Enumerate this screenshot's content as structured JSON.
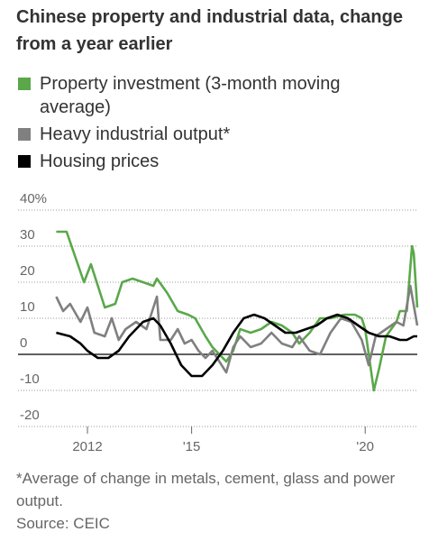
{
  "chart_data": {
    "type": "line",
    "title": "Chinese property and industrial data, change from a year earlier",
    "footnote": "*Average of change in metals, cement, glass and power output.",
    "source": "Source: CEIC",
    "xlim": [
      2010,
      2021.5
    ],
    "xticks": [
      2012,
      {
        "value": 2015,
        "label": "'15"
      },
      {
        "value": 2020,
        "label": "'20"
      }
    ],
    "ylim": [
      -20,
      40
    ],
    "yticks": [
      {
        "value": 40,
        "label": "40%"
      },
      30,
      20,
      10,
      0,
      -10,
      -20
    ],
    "grid": true,
    "series": [
      {
        "name": "Property investment (3-month moving average)",
        "color": "#5aa84a",
        "x": [
          2011.1,
          2011.4,
          2011.9,
          2012.1,
          2012.5,
          2012.8,
          2013.0,
          2013.3,
          2013.6,
          2013.9,
          2014.0,
          2014.3,
          2014.6,
          2014.9,
          2015.1,
          2015.4,
          2015.6,
          2015.8,
          2016.0,
          2016.2,
          2016.4,
          2016.7,
          2017.0,
          2017.3,
          2017.6,
          2017.9,
          2018.1,
          2018.4,
          2018.7,
          2019.0,
          2019.4,
          2019.7,
          2019.9,
          2020.0,
          2020.25,
          2020.4,
          2020.6,
          2020.9,
          2021.0,
          2021.2,
          2021.35,
          2021.4,
          2021.5
        ],
        "values": [
          34,
          34,
          20,
          25,
          13,
          14,
          20,
          21,
          20,
          19,
          21,
          17,
          12,
          11,
          10,
          5,
          2,
          0,
          -2,
          1,
          7,
          6,
          7,
          9,
          8,
          6,
          3,
          6,
          10,
          10,
          11,
          11,
          10,
          7,
          -10,
          -4,
          5,
          9,
          12,
          12,
          30,
          28,
          13
        ]
      },
      {
        "name": "Heavy industrial output*",
        "color": "#808080",
        "x": [
          2011.1,
          2011.3,
          2011.5,
          2011.8,
          2012.0,
          2012.2,
          2012.5,
          2012.7,
          2012.9,
          2013.1,
          2013.4,
          2013.7,
          2014.0,
          2014.1,
          2014.4,
          2014.6,
          2014.8,
          2015.0,
          2015.2,
          2015.4,
          2015.6,
          2015.8,
          2016.0,
          2016.2,
          2016.4,
          2016.7,
          2017.0,
          2017.3,
          2017.6,
          2017.9,
          2018.1,
          2018.4,
          2018.7,
          2019.0,
          2019.3,
          2019.6,
          2019.9,
          2020.1,
          2020.3,
          2020.6,
          2020.9,
          2021.1,
          2021.3,
          2021.5
        ],
        "values": [
          16,
          12,
          14,
          9,
          13,
          6,
          5,
          10,
          4,
          7,
          9,
          7,
          16,
          4,
          4,
          7,
          3,
          4,
          1,
          -1,
          1,
          -2,
          -5,
          2,
          5,
          2,
          3,
          6,
          3,
          2,
          5,
          1,
          0,
          6,
          10,
          9,
          4,
          -3,
          5,
          7,
          9,
          8,
          19,
          8
        ]
      },
      {
        "name": "Housing prices",
        "color": "#000000",
        "x": [
          2011.1,
          2011.5,
          2011.8,
          2012.0,
          2012.3,
          2012.6,
          2012.9,
          2013.2,
          2013.6,
          2013.9,
          2014.1,
          2014.4,
          2014.7,
          2015.0,
          2015.3,
          2015.6,
          2015.9,
          2016.2,
          2016.5,
          2016.8,
          2017.1,
          2017.4,
          2017.7,
          2018.0,
          2018.3,
          2018.6,
          2018.9,
          2019.2,
          2019.5,
          2019.8,
          2020.1,
          2020.4,
          2020.7,
          2021.0,
          2021.2,
          2021.4,
          2021.5
        ],
        "values": [
          6,
          5,
          3,
          1,
          -1,
          -1,
          1,
          5,
          9,
          10,
          8,
          3,
          -3,
          -6,
          -6,
          -3,
          1,
          6,
          10,
          11,
          10,
          8,
          6,
          6,
          7,
          8,
          10,
          11,
          10,
          8,
          6,
          5,
          5,
          4,
          4,
          5,
          5
        ]
      }
    ]
  }
}
